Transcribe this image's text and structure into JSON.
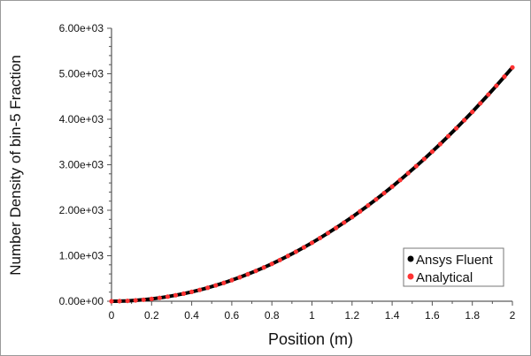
{
  "chart_data": {
    "type": "scatter",
    "title": "",
    "xlabel": "Position (m)",
    "ylabel": "Number Density of bin-5 Fraction",
    "xlim": [
      0,
      2
    ],
    "ylim": [
      0,
      6000
    ],
    "x_ticks": [
      "0",
      "0.2",
      "0.4",
      "0.6",
      "0.8",
      "1",
      "1.2",
      "1.4",
      "1.6",
      "1.8",
      "2"
    ],
    "y_ticks": [
      "0.00e+00",
      "1.00e+03",
      "2.00e+03",
      "3.00e+03",
      "4.00e+03",
      "5.00e+03",
      "6.00e+03"
    ],
    "grid": false,
    "legend_placement": "bottom-right",
    "x": [
      0,
      0.04,
      0.08,
      0.12,
      0.16,
      0.2,
      0.24,
      0.28,
      0.32,
      0.36,
      0.4,
      0.44,
      0.48,
      0.52,
      0.56,
      0.6,
      0.64,
      0.68,
      0.72,
      0.76,
      0.8,
      0.84,
      0.88,
      0.92,
      0.96,
      1,
      1.04,
      1.08,
      1.12,
      1.16,
      1.2,
      1.24,
      1.28,
      1.32,
      1.36,
      1.4,
      1.44,
      1.48,
      1.52,
      1.56,
      1.6,
      1.64,
      1.68,
      1.72,
      1.76,
      1.8,
      1.84,
      1.88,
      1.92,
      1.96,
      2
    ],
    "series": [
      {
        "name": "Ansys Fluent",
        "color": "#000000",
        "style": "line",
        "values": [
          0,
          2,
          8,
          19,
          33,
          51,
          74,
          101,
          132,
          167,
          206,
          249,
          296,
          348,
          403,
          463,
          526,
          594,
          666,
          742,
          822,
          907,
          995,
          1088,
          1184,
          1285,
          1390,
          1499,
          1612,
          1729,
          1850,
          1976,
          2105,
          2239,
          2377,
          2519,
          2665,
          2815,
          2969,
          3127,
          3290,
          3456,
          3627,
          3802,
          3980,
          4163,
          4351,
          4542,
          4737,
          4937,
          5140
        ]
      },
      {
        "name": "Analytical",
        "color": "#ff3333",
        "style": "markers",
        "values": [
          0,
          2,
          8,
          19,
          33,
          51,
          74,
          101,
          132,
          167,
          206,
          249,
          296,
          348,
          403,
          463,
          526,
          594,
          666,
          742,
          822,
          907,
          995,
          1088,
          1184,
          1285,
          1390,
          1499,
          1612,
          1729,
          1850,
          1976,
          2105,
          2239,
          2377,
          2519,
          2665,
          2815,
          2969,
          3127,
          3290,
          3456,
          3627,
          3802,
          3980,
          4163,
          4351,
          4542,
          4737,
          4937,
          5140
        ]
      }
    ]
  }
}
